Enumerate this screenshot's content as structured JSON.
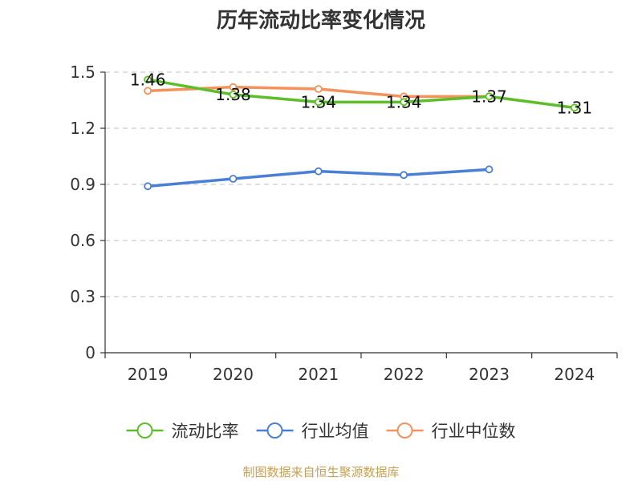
{
  "chart_data": {
    "type": "line",
    "title": "历年流动比率变化情况",
    "categories": [
      "2019",
      "2020",
      "2021",
      "2022",
      "2023",
      "2024"
    ],
    "ylim": [
      0,
      1.5
    ],
    "yticks": [
      "0",
      "0.3",
      "0.6",
      "0.9",
      "1.2",
      "1.5"
    ],
    "grid": true,
    "legend_position": "bottom",
    "series": [
      {
        "name": "流动比率",
        "color": "#5cbf2a",
        "values": [
          1.46,
          1.38,
          1.34,
          1.34,
          1.37,
          1.31
        ],
        "labels": [
          "1.46",
          "1.38",
          "1.34",
          "1.34",
          "1.37",
          "1.31"
        ]
      },
      {
        "name": "行业均值",
        "color": "#4a7fd8",
        "values": [
          0.89,
          0.93,
          0.97,
          0.95,
          0.98,
          null
        ]
      },
      {
        "name": "行业中位数",
        "color": "#f5915a",
        "values": [
          1.4,
          1.42,
          1.41,
          1.37,
          1.37,
          null
        ]
      }
    ]
  },
  "source": "制图数据来自恒生聚源数据库"
}
